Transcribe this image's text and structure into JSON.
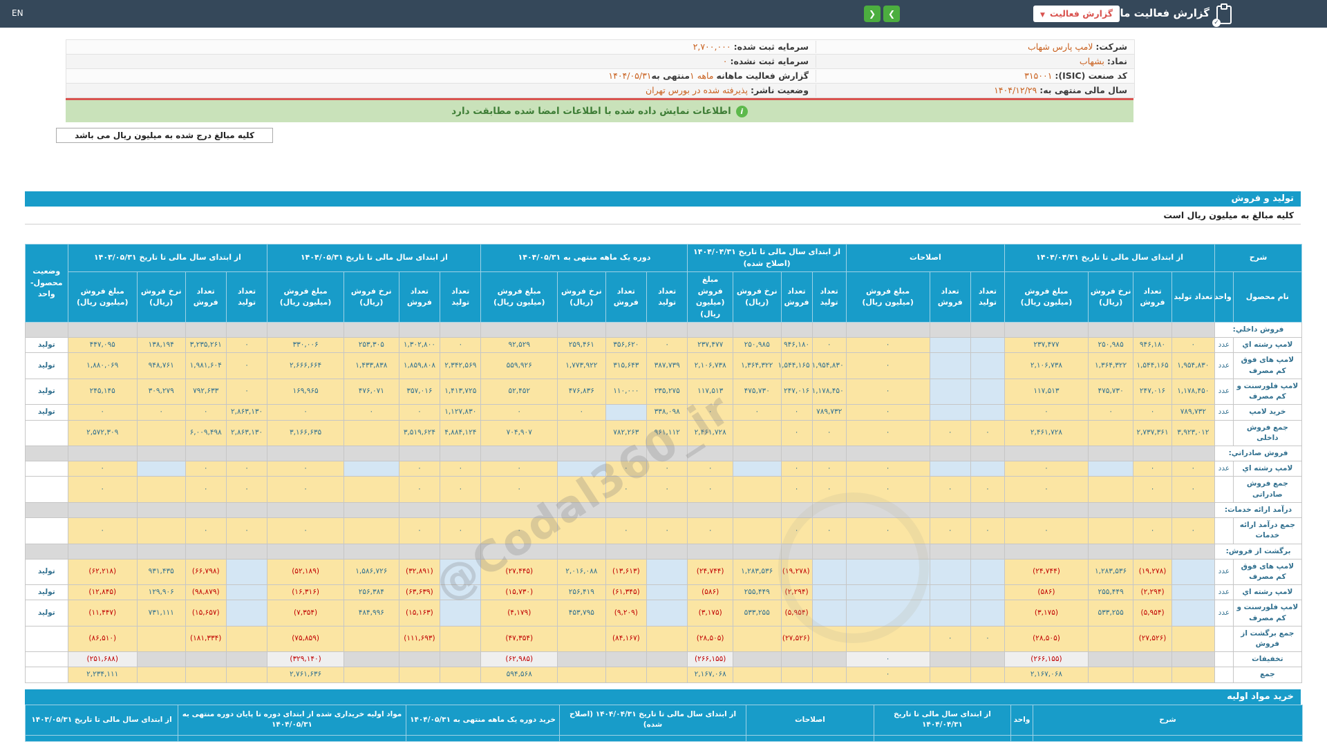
{
  "navbar": {
    "title": "گزارش فعالیت ماهانه",
    "dropdown_label": "گزارش فعالیت",
    "dropdown_chevron": "▼",
    "next_chevron": "❮",
    "prev_chevron": "❯",
    "en_label": "EN"
  },
  "info": {
    "rows": [
      {
        "right_label": "شرکت:",
        "right_value": "لامپ پارس شهاب",
        "left_label": "سرمایه ثبت شده:",
        "left_value": "۲,۷۰۰,۰۰۰"
      },
      {
        "right_label": "نماد:",
        "right_value": "بشهاب",
        "left_label": "سرمایه ثبت نشده:",
        "left_value": "۰"
      },
      {
        "right_label": "کد صنعت (ISIC):",
        "right_value": "۳۱۵۰۰۱",
        "left_label": "گزارش فعالیت ماهانه",
        "left_value": "۱ ماهه",
        "left_label2": "منتهی به",
        "left_value2": "۱۴۰۴/۰۵/۳۱"
      },
      {
        "right_label": "سال مالی منتهی به:",
        "right_value": "۱۴۰۴/۱۲/۲۹",
        "left_label": "وضعیت ناشر:",
        "left_value": "پذیرفته شده در بورس تهران"
      }
    ]
  },
  "banner": {
    "text": "اطلاعات نمایش داده شده با اطلاعات امضا شده مطابقت دارد",
    "icon": "i"
  },
  "note_box": {
    "text": "کلیه مبالغ درج شده به میلیون ریال می باشد"
  },
  "production_section": {
    "title": "تولید و فروش",
    "subtitle": "کلیه مبالغ به میلیون ریال است",
    "status_header": "وضعیت\nمحصول-واحد",
    "col_groups": [
      {
        "label": "شرح",
        "cols": [
          "نام محصول",
          "واحد"
        ]
      },
      {
        "label": "از ابتدای سال مالی تا تاریخ ۱۴۰۴/۰۴/۳۱",
        "cols": [
          "تعداد تولید",
          "تعداد\nفروش",
          "نرخ فروش\n(ریال)",
          "مبلغ فروش\n(میلیون ریال)"
        ]
      },
      {
        "label": "اصلاحات",
        "cols": [
          "تعداد\nتولید",
          "تعداد\nفروش",
          "مبلغ فروش\n(میلیون ریال)"
        ]
      },
      {
        "label": "از ابتدای سال مالی تا تاریخ ۱۴۰۴/۰۴/۳۱ (اصلاح شده)",
        "cols": [
          "تعداد\nتولید",
          "تعداد\nفروش",
          "نرخ فروش\n(ریال)",
          "مبلغ فروش\n(میلیون ریال)"
        ]
      },
      {
        "label": "دوره یک ماهه منتهی به ۱۴۰۴/۰۵/۳۱",
        "cols": [
          "تعداد\nتولید",
          "تعداد\nفروش",
          "نرخ فروش\n(ریال)",
          "مبلغ فروش\n(میلیون ریال)"
        ]
      },
      {
        "label": "از ابتدای سال مالی تا تاریخ ۱۴۰۴/۰۵/۳۱",
        "cols": [
          "تعداد تولید",
          "تعداد\nفروش",
          "نرخ فروش\n(ریال)",
          "مبلغ فروش\n(میلیون ریال)"
        ]
      },
      {
        "label": "از ابتدای سال مالی تا تاریخ ۱۴۰۳/۰۵/۳۱",
        "cols": [
          "تعداد تولید",
          "تعداد\nفروش",
          "نرخ فروش\n(ریال)",
          "مبلغ فروش\n(میلیون ریال)"
        ]
      }
    ],
    "rows": [
      {
        "type": "section",
        "label": "فروش داخلي:"
      },
      {
        "type": "data",
        "name": "لامپ رشته اي",
        "unit": "عدد",
        "status": "تولید",
        "vals": [
          "۰",
          "۹۴۶,۱۸۰",
          "۲۵۰,۹۸۵",
          "۲۳۷,۴۷۷",
          "",
          "",
          "۰",
          "۰",
          "۹۴۶,۱۸۰",
          "۲۵۰,۹۸۵",
          "۲۳۷,۴۷۷",
          "۰",
          "۳۵۶,۶۲۰",
          "۲۵۹,۴۶۱",
          "۹۲,۵۲۹",
          "۰",
          "۱,۳۰۲,۸۰۰",
          "۲۵۳,۳۰۵",
          "۳۳۰,۰۰۶",
          "۰",
          "۳,۲۳۵,۲۶۱",
          "۱۳۸,۱۹۴",
          "۴۴۷,۰۹۵"
        ]
      },
      {
        "type": "data",
        "name": "لامپ های فوق کم مصرف",
        "unit": "عدد",
        "status": "تولید",
        "vals": [
          "۱,۹۵۴,۸۳۰",
          "۱,۵۴۴,۱۶۵",
          "۱,۳۶۴,۳۲۲",
          "۲,۱۰۶,۷۳۸",
          "",
          "",
          "۰",
          "۱,۹۵۴,۸۳۰",
          "۱,۵۴۴,۱۶۵",
          "۱,۳۶۴,۳۲۲",
          "۲,۱۰۶,۷۳۸",
          "۳۸۷,۷۳۹",
          "۳۱۵,۶۴۳",
          "۱,۷۷۳,۹۲۲",
          "۵۵۹,۹۲۶",
          "۲,۳۴۲,۵۶۹",
          "۱,۸۵۹,۸۰۸",
          "۱,۴۳۳,۸۳۸",
          "۲,۶۶۶,۶۶۴",
          "۰",
          "۱,۹۸۱,۶۰۴",
          "۹۴۸,۷۶۱",
          "۱,۸۸۰,۰۶۹"
        ]
      },
      {
        "type": "data",
        "name": "لامپ فلورسنت و کم مصرف",
        "unit": "عدد",
        "status": "تولید",
        "vals": [
          "۱,۱۷۸,۴۵۰",
          "۲۴۷,۰۱۶",
          "۴۷۵,۷۳۰",
          "۱۱۷,۵۱۳",
          "",
          "",
          "۰",
          "۱,۱۷۸,۴۵۰",
          "۲۴۷,۰۱۶",
          "۴۷۵,۷۳۰",
          "۱۱۷,۵۱۳",
          "۲۳۵,۲۷۵",
          "۱۱۰,۰۰۰",
          "۴۷۶,۸۳۶",
          "۵۲,۴۵۲",
          "۱,۴۱۳,۷۲۵",
          "۳۵۷,۰۱۶",
          "۴۷۶,۰۷۱",
          "۱۶۹,۹۶۵",
          "۰",
          "۷۹۲,۶۳۳",
          "۳۰۹,۲۷۹",
          "۲۴۵,۱۴۵"
        ]
      },
      {
        "type": "data",
        "name": "خرید لامپ",
        "unit": "عدد",
        "status": "تولید",
        "vals": [
          "۷۸۹,۷۳۲",
          "۰",
          "۰",
          "۰",
          "",
          "",
          "۰",
          "۷۸۹,۷۳۲",
          "۰",
          "۰",
          "۰",
          "۳۳۸,۰۹۸",
          "",
          "۰",
          "۰",
          "۱,۱۲۷,۸۳۰",
          "۰",
          "۰",
          "۰",
          "۲,۸۶۳,۱۳۰",
          "۰",
          "۰",
          "۰"
        ]
      },
      {
        "type": "total",
        "name": "جمع فروش داخلی",
        "unit": "",
        "status": "",
        "vals": [
          "۳,۹۲۳,۰۱۲",
          "۲,۷۳۷,۳۶۱",
          "",
          "۲,۴۶۱,۷۲۸",
          "۰",
          "۰",
          "۰",
          "۰",
          "۰",
          "",
          "۲,۴۶۱,۷۲۸",
          "۹۶۱,۱۱۲",
          "۷۸۲,۲۶۳",
          "",
          "۷۰۴,۹۰۷",
          "۴,۸۸۴,۱۲۴",
          "۳,۵۱۹,۶۲۴",
          "",
          "۳,۱۶۶,۶۳۵",
          "۲,۸۶۳,۱۳۰",
          "۶,۰۰۹,۴۹۸",
          "",
          "۲,۵۷۲,۳۰۹"
        ]
      },
      {
        "type": "section",
        "label": "فروش صادراتي:"
      },
      {
        "type": "data",
        "name": "لامپ رشته اي",
        "unit": "عدد",
        "status": "",
        "vals": [
          "۰",
          "۰",
          "",
          "۰",
          "",
          "",
          "۰",
          "۰",
          "۰",
          "",
          "۰",
          "۰",
          "۰",
          "",
          "۰",
          "۰",
          "۰",
          "",
          "۰",
          "۰",
          "۰",
          "",
          "۰"
        ]
      },
      {
        "type": "total",
        "name": "جمع فروش صادراتی",
        "unit": "",
        "status": "",
        "vals": [
          "۰",
          "۰",
          "",
          "۰",
          "۰",
          "۰",
          "۰",
          "۰",
          "۰",
          "",
          "۰",
          "۰",
          "۰",
          "",
          "۰",
          "۰",
          "۰",
          "",
          "۰",
          "۰",
          "۰",
          "",
          "۰"
        ]
      },
      {
        "type": "section",
        "label": "درآمد ارائه خدمات:"
      },
      {
        "type": "total",
        "name": "جمع درآمد ارائه خدمات",
        "unit": "",
        "status": "",
        "vals": [
          "۰",
          "۰",
          "",
          "۰",
          "۰",
          "۰",
          "۰",
          "۰",
          "۰",
          "",
          "۰",
          "۰",
          "۰",
          "",
          "۰",
          "۰",
          "۰",
          "",
          "۰",
          "۰",
          "۰",
          "",
          "۰"
        ]
      },
      {
        "type": "section",
        "label": "برگشت از فروش:"
      },
      {
        "type": "data",
        "name": "لامپ های فوق کم مصرف",
        "unit": "عدد",
        "status": "تولید",
        "vals": [
          "",
          "(۱۹,۲۷۸)",
          "۱,۲۸۳,۵۳۶",
          "(۲۴,۷۴۴)",
          "",
          "",
          "",
          "",
          "(۱۹,۲۷۸)",
          "۱,۲۸۳,۵۳۶",
          "(۲۴,۷۴۴)",
          "",
          "(۱۳,۶۱۳)",
          "۲,۰۱۶,۰۸۸",
          "(۲۷,۴۴۵)",
          "",
          "(۳۲,۸۹۱)",
          "۱,۵۸۶,۷۲۶",
          "(۵۲,۱۸۹)",
          "",
          "(۶۶,۷۹۸)",
          "۹۳۱,۴۳۵",
          "(۶۲,۲۱۸)"
        ]
      },
      {
        "type": "data",
        "name": "لامپ رشته اي",
        "unit": "عدد",
        "status": "تولید",
        "vals": [
          "",
          "(۲,۲۹۴)",
          "۲۵۵,۴۴۹",
          "(۵۸۶)",
          "",
          "",
          "",
          "",
          "(۲,۲۹۴)",
          "۲۵۵,۴۴۹",
          "(۵۸۶)",
          "",
          "(۶۱,۳۴۵)",
          "۲۵۶,۴۱۹",
          "(۱۵,۷۳۰)",
          "",
          "(۶۳,۶۳۹)",
          "۲۵۶,۳۸۴",
          "(۱۶,۳۱۶)",
          "",
          "(۹۸,۸۷۹)",
          "۱۲۹,۹۰۶",
          "(۱۲,۸۴۵)"
        ]
      },
      {
        "type": "data",
        "name": "لامپ فلورسنت و کم مصرف",
        "unit": "عدد",
        "status": "تولید",
        "vals": [
          "",
          "(۵,۹۵۴)",
          "۵۳۳,۲۵۵",
          "(۳,۱۷۵)",
          "",
          "",
          "",
          "",
          "(۵,۹۵۴)",
          "۵۳۳,۲۵۵",
          "(۳,۱۷۵)",
          "",
          "(۹,۲۰۹)",
          "۴۵۳,۷۹۵",
          "(۴,۱۷۹)",
          "",
          "(۱۵,۱۶۳)",
          "۴۸۴,۹۹۶",
          "(۷,۳۵۴)",
          "",
          "(۱۵,۶۵۷)",
          "۷۳۱,۱۱۱",
          "(۱۱,۴۴۷)"
        ]
      },
      {
        "type": "total",
        "name": "جمع برگشت از فروش",
        "unit": "",
        "status": "",
        "vals": [
          "",
          "(۲۷,۵۲۶)",
          "",
          "(۲۸,۵۰۵)",
          "۰",
          "۰",
          "",
          "",
          "(۲۷,۵۲۶)",
          "",
          "(۲۸,۵۰۵)",
          "",
          "(۸۴,۱۶۷)",
          "",
          "(۴۷,۳۵۴)",
          "",
          "(۱۱۱,۶۹۳)",
          "",
          "(۷۵,۸۵۹)",
          "",
          "(۱۸۱,۳۳۴)",
          "",
          "(۸۶,۵۱۰)"
        ]
      },
      {
        "type": "disc",
        "name": "تخفیفات",
        "unit": "",
        "status": "",
        "vals": [
          "",
          "",
          "",
          "(۲۶۶,۱۵۵)",
          "",
          "",
          "۰",
          "",
          "",
          "",
          "(۲۶۶,۱۵۵)",
          "",
          "",
          "",
          "(۶۲,۹۸۵)",
          "",
          "",
          "",
          "(۳۲۹,۱۴۰)",
          "",
          "",
          "",
          "(۲۵۱,۶۸۸)"
        ]
      },
      {
        "type": "total",
        "name": "جمع",
        "unit": "",
        "status": "",
        "vals": [
          "",
          "",
          "",
          "۲,۱۶۷,۰۶۸",
          "",
          "",
          "۰",
          "",
          "",
          "",
          "۲,۱۶۷,۰۶۸",
          "",
          "",
          "",
          "۵۹۴,۵۶۸",
          "",
          "",
          "",
          "۲,۷۶۱,۶۳۶",
          "",
          "",
          "",
          "۲,۲۳۴,۱۱۱"
        ]
      }
    ]
  },
  "purchase_section": {
    "title": "خرید مواد اولیه",
    "headers": [
      "شرح",
      "واحد",
      "از ابتدای سال مالی تا تاریخ ۱۴۰۴/۰۴/۳۱",
      "اصلاحات",
      "از ابتدای سال مالی تا تاریخ ۱۴۰۴/۰۴/۳۱ (اصلاح شده)",
      "خرید دوره یک ماهه منتهی به ۱۴۰۴/۰۵/۳۱",
      "مواد اولیه خریداری شده از ابتدای دوره تا پایان دوره منتهی به ۱۴۰۴/۰۵/۳۱",
      "از ابتدای سال مالی تا تاریخ ۱۴۰۳/۰۵/۳۱"
    ]
  },
  "watermark": {
    "text": "@Codal360_ir"
  }
}
